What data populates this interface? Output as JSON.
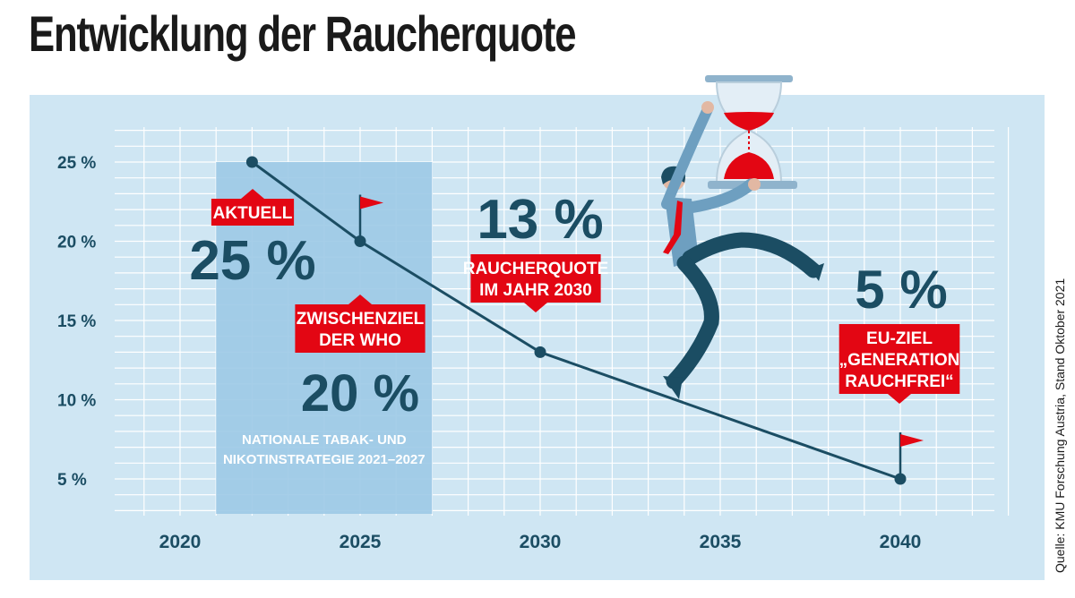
{
  "title": "Entwicklung der Raucherquote",
  "source": "Quelle: KMU Forschung Austria, Stand Oktober 2021",
  "colors": {
    "panel": "#cfe6f3",
    "band": "#9cc9e5",
    "grid": "#ffffff",
    "line": "#1b4d63",
    "accent": "#e30613"
  },
  "chart_data": {
    "type": "line",
    "title": "Entwicklung der Raucherquote",
    "xlabel": "",
    "ylabel": "",
    "x": [
      2022,
      2025,
      2030,
      2040
    ],
    "values": [
      25,
      20,
      13,
      5
    ],
    "x_ticks": [
      "2020",
      "2025",
      "2030",
      "2035",
      "2040"
    ],
    "y_ticks": [
      "25 %",
      "20 %",
      "15 %",
      "10 %",
      "5 %"
    ],
    "xlim": [
      2019,
      2043
    ],
    "ylim": [
      3,
      27
    ],
    "grid": true,
    "highlight_range": {
      "from": 2021,
      "to": 2027,
      "label_lines": [
        "NATIONALE TABAK- UND",
        "NIKOTINSTRATEGIE 2021–2027"
      ]
    },
    "annotations": [
      {
        "x": 2022,
        "y": 25,
        "value": "25 %",
        "label_lines": [
          "AKTUELL"
        ]
      },
      {
        "x": 2025,
        "y": 20,
        "value": "20 %",
        "label_lines": [
          "ZWISCHENZIEL",
          "DER WHO"
        ]
      },
      {
        "x": 2030,
        "y": 13,
        "value": "13 %",
        "label_lines": [
          "RAUCHERQUOTE",
          "IM JAHR 2030"
        ]
      },
      {
        "x": 2040,
        "y": 5,
        "value": "5 %",
        "label_lines": [
          "EU-ZIEL",
          "„GENERATION",
          "RAUCHFREI“"
        ]
      }
    ],
    "flags": [
      2025,
      2040
    ]
  }
}
